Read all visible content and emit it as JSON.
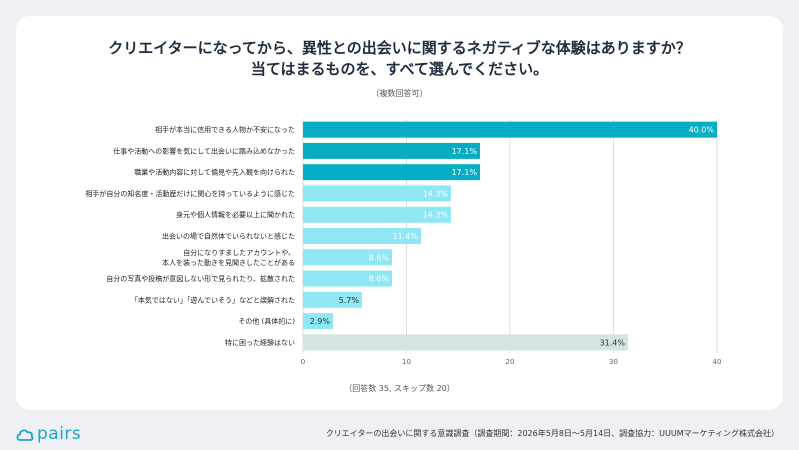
{
  "title_line1": "クリエイターになってから、異性との出会いに関するネガティブな体験はありますか？",
  "title_line2": "当てはまるものを、すべて選んでください。",
  "subtitle": "（複数回答可）",
  "footnote": "（回答数 35, スキップ数 20）",
  "logo_text": "pairs",
  "source": "クリエイターの出会いに関する意識調査（調査期間：2026年5月8日〜5月14日、調査協力：UUUMマーケティング株式会社）",
  "chart_data": {
    "type": "bar",
    "orientation": "horizontal",
    "xlim": [
      0,
      40
    ],
    "xticks": [
      0,
      10,
      20,
      30,
      40
    ],
    "grid": true,
    "unit": "%",
    "categories": [
      [
        "相手が本当に信用できる人物か不安になった"
      ],
      [
        "仕事や活動への影響を気にして出会いに踏み込めなかった"
      ],
      [
        "職業や活動内容に対して偏見や先入観を向けられた"
      ],
      [
        "相手が自分の知名度・活動歴だけに関心を持っているように感じた"
      ],
      [
        "身元や個人情報を必要以上に聞かれた"
      ],
      [
        "出会いの場で自然体でいられないと感じた"
      ],
      [
        "自分になりすましたアカウントや、",
        "本人を装った動きを見聞きしたことがある"
      ],
      [
        "自分の写真や投稿が意図しない形で見られたり、拡散された"
      ],
      [
        "「本気ではない」「遊んでいそう」などと誤解された"
      ],
      [
        "その他 (具体的に)"
      ],
      [
        "特に困った経験はない"
      ]
    ],
    "values": [
      40.0,
      17.1,
      17.1,
      14.3,
      14.3,
      11.4,
      8.6,
      8.6,
      5.7,
      2.9,
      31.4
    ],
    "value_labels": [
      "40.0%",
      "17.1%",
      "17.1%",
      "14.3%",
      "14.3%",
      "11.4%",
      "8.6%",
      "8.6%",
      "5.7%",
      "2.9%",
      "31.4%"
    ],
    "colors": [
      "#06adc3",
      "#06adc3",
      "#06adc3",
      "#8fe7f5",
      "#8fe7f5",
      "#8fe7f5",
      "#8fe7f5",
      "#8fe7f5",
      "#8fe7f5",
      "#8fe7f5",
      "#d5e3e3"
    ],
    "label_colors": [
      "#ffffff",
      "#ffffff",
      "#ffffff",
      "#ffffff",
      "#ffffff",
      "#ffffff",
      "#ffffff",
      "#ffffff",
      "#333333",
      "#333333",
      "#333333"
    ]
  }
}
